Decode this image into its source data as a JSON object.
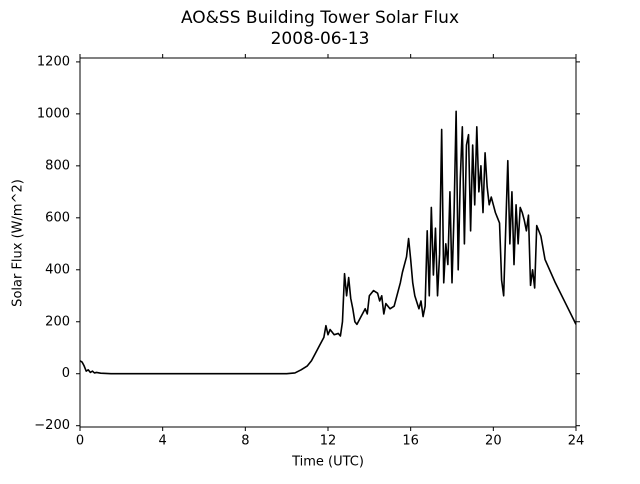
{
  "chart_data": {
    "type": "line",
    "title": "AO&SS Building Tower Solar Flux",
    "subtitle": "2008-06-13",
    "x_label": "Time (UTC)",
    "y_label": "Solar Flux (W/m^2)",
    "xlim": [
      0,
      24
    ],
    "xticks": [
      0,
      4,
      8,
      12,
      16,
      20,
      24
    ],
    "ylim": [
      -205,
      1215
    ],
    "yticks": [
      {
        "value": -200,
        "label": "−200"
      },
      0,
      200,
      400,
      600,
      800,
      1000,
      1200
    ],
    "x": [
      0,
      0.1,
      0.2,
      0.3,
      0.4,
      0.5,
      0.6,
      0.7,
      0.8,
      1.0,
      1.5,
      2,
      4,
      6,
      8,
      10,
      10.4,
      10.7,
      11.0,
      11.2,
      11.4,
      11.6,
      11.8,
      11.9,
      12.0,
      12.1,
      12.3,
      12.5,
      12.6,
      12.7,
      12.8,
      12.9,
      13.0,
      13.1,
      13.2,
      13.3,
      13.4,
      13.6,
      13.8,
      13.9,
      14.0,
      14.2,
      14.4,
      14.5,
      14.6,
      14.7,
      14.8,
      15.0,
      15.2,
      15.5,
      15.6,
      15.7,
      15.8,
      15.9,
      16.0,
      16.1,
      16.2,
      16.4,
      16.5,
      16.6,
      16.7,
      16.8,
      16.9,
      17.0,
      17.1,
      17.2,
      17.3,
      17.4,
      17.5,
      17.6,
      17.7,
      17.8,
      17.9,
      18.0,
      18.1,
      18.2,
      18.3,
      18.4,
      18.5,
      18.6,
      18.7,
      18.8,
      18.9,
      19.0,
      19.1,
      19.2,
      19.3,
      19.4,
      19.5,
      19.6,
      19.7,
      19.8,
      19.9,
      20.0,
      20.1,
      20.2,
      20.3,
      20.4,
      20.5,
      20.6,
      20.7,
      20.8,
      20.9,
      21.0,
      21.1,
      21.2,
      21.3,
      21.4,
      21.5,
      21.6,
      21.7,
      21.8,
      21.9,
      22.0,
      22.1,
      22.3,
      22.5,
      23.0,
      23.5,
      24.0
    ],
    "series": [
      {
        "name": "Solar Flux",
        "color": "#000000",
        "values": [
          50,
          45,
          30,
          10,
          15,
          5,
          10,
          3,
          5,
          2,
          0,
          0,
          0,
          0,
          0,
          0,
          3,
          15,
          30,
          50,
          80,
          110,
          140,
          185,
          150,
          170,
          150,
          155,
          145,
          200,
          385,
          300,
          370,
          290,
          250,
          200,
          190,
          220,
          250,
          230,
          300,
          320,
          310,
          280,
          300,
          230,
          270,
          250,
          260,
          350,
          390,
          420,
          450,
          520,
          440,
          350,
          300,
          250,
          280,
          220,
          260,
          550,
          300,
          640,
          380,
          560,
          300,
          460,
          940,
          350,
          500,
          420,
          700,
          350,
          620,
          1010,
          400,
          750,
          950,
          500,
          880,
          920,
          550,
          880,
          650,
          950,
          700,
          800,
          620,
          850,
          720,
          650,
          680,
          650,
          620,
          600,
          580,
          360,
          300,
          560,
          820,
          500,
          700,
          420,
          650,
          500,
          640,
          620,
          590,
          550,
          610,
          340,
          400,
          330,
          570,
          530,
          440,
          350,
          270,
          190
        ]
      }
    ]
  }
}
